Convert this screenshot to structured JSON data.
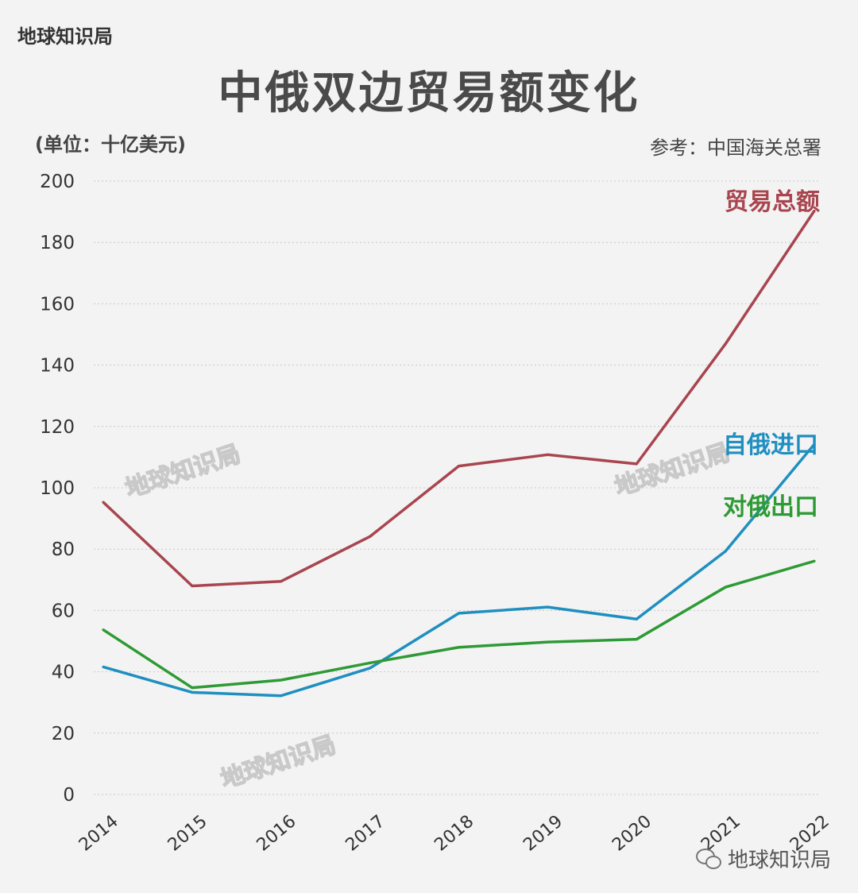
{
  "brand": "地球知识局",
  "header": {
    "title": "中俄双边贸易额变化",
    "unit_label": "(单位：十亿美元)",
    "source_label": "参考：中国海关总署"
  },
  "watermark_text": "地球知识局",
  "footer": {
    "account": "地球知识局",
    "icon": "wechat-icon"
  },
  "chart_data": {
    "type": "line",
    "title": "中俄双边贸易额变化",
    "xlabel": "",
    "ylabel": "(单位：十亿美元)",
    "ylim": [
      0,
      200
    ],
    "yticks": [
      0,
      20,
      40,
      60,
      80,
      100,
      120,
      140,
      160,
      180,
      200
    ],
    "grid": true,
    "categories": [
      "2014",
      "2015",
      "2016",
      "2017",
      "2018",
      "2019",
      "2020",
      "2021",
      "2022"
    ],
    "series": [
      {
        "name": "贸易总额",
        "color": "#a8454f",
        "values": [
          95.3,
          68.0,
          69.5,
          84.1,
          107.1,
          110.8,
          107.8,
          146.9,
          190.3
        ]
      },
      {
        "name": "自俄进口",
        "color": "#1f8fc0",
        "values": [
          41.6,
          33.3,
          32.2,
          41.2,
          59.1,
          61.1,
          57.2,
          79.3,
          114.2
        ]
      },
      {
        "name": "对俄出口",
        "color": "#2e9a35",
        "values": [
          53.7,
          34.8,
          37.3,
          42.9,
          48.0,
          49.7,
          50.6,
          67.6,
          76.1
        ]
      }
    ]
  }
}
